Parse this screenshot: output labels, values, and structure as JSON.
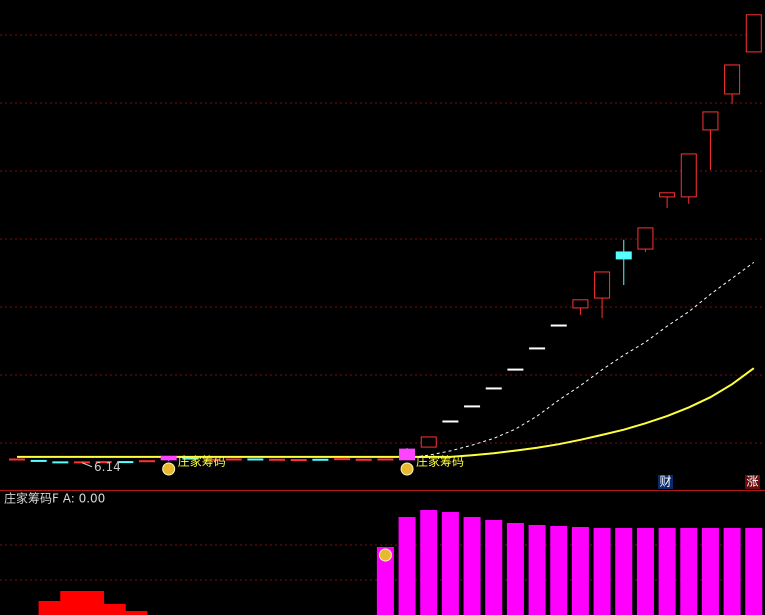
{
  "chart_data": {
    "type": "candlestick",
    "ylim": [
      5.2,
      22.1
    ],
    "colors": {
      "up": "#ff3232",
      "down": "#54ffff",
      "signal": "#ff44ff",
      "flat": "#ffffff"
    },
    "open": [
      6.24,
      6.22,
      6.17,
      6.15,
      6.17,
      6.18,
      6.2,
      6.24,
      6.3,
      6.25,
      6.26,
      6.27,
      6.25,
      6.24,
      6.26,
      6.27,
      6.25,
      6.26,
      6.24,
      6.68,
      7.58,
      8.1,
      8.72,
      9.37,
      10.1,
      10.89,
      11.48,
      11.82,
      13.41,
      13.51,
      15.31,
      15.31,
      17.62,
      18.86,
      20.31
    ],
    "close": [
      6.27,
      6.19,
      6.16,
      6.17,
      6.18,
      6.17,
      6.21,
      6.36,
      6.28,
      6.26,
      6.27,
      6.26,
      6.26,
      6.25,
      6.25,
      6.28,
      6.26,
      6.27,
      6.61,
      7.03,
      7.58,
      8.1,
      8.72,
      9.37,
      10.1,
      10.89,
      11.76,
      12.72,
      13.17,
      14.24,
      15.45,
      16.79,
      18.24,
      19.86,
      21.59
    ],
    "high": [
      6.28,
      6.23,
      6.18,
      6.18,
      6.19,
      6.19,
      6.22,
      6.37,
      6.31,
      6.27,
      6.28,
      6.28,
      6.27,
      6.26,
      6.27,
      6.29,
      6.27,
      6.28,
      6.65,
      7.03,
      7.58,
      8.1,
      8.72,
      9.37,
      10.1,
      10.89,
      11.76,
      12.72,
      13.83,
      14.24,
      15.45,
      16.79,
      18.24,
      19.86,
      21.59
    ],
    "low": [
      6.22,
      6.18,
      6.15,
      6.14,
      6.16,
      6.16,
      6.19,
      6.19,
      6.27,
      6.24,
      6.25,
      6.25,
      6.24,
      6.23,
      6.24,
      6.26,
      6.24,
      6.25,
      6.24,
      6.68,
      7.58,
      8.1,
      8.72,
      9.37,
      10.1,
      10.89,
      11.24,
      11.13,
      12.27,
      13.41,
      14.93,
      15.07,
      16.24,
      18.52,
      20.31
    ],
    "signals": [
      {
        "index": 7,
        "label": "庄家筹码"
      },
      {
        "index": 18,
        "label": "庄家筹码"
      }
    ],
    "low_label": 6.14,
    "low_index": 3,
    "lines": [
      {
        "color": "#ffff40",
        "dashed": false,
        "values": [
          6.34,
          6.34,
          6.34,
          6.34,
          6.34,
          6.34,
          6.34,
          6.34,
          6.34,
          6.34,
          6.34,
          6.34,
          6.34,
          6.34,
          6.34,
          6.34,
          6.34,
          6.34,
          6.34,
          6.34,
          6.34,
          6.4,
          6.47,
          6.56,
          6.66,
          6.78,
          6.93,
          7.1,
          7.28,
          7.5,
          7.75,
          8.05,
          8.4,
          8.85,
          9.4
        ]
      },
      {
        "color": "#ffffff",
        "dashed": true,
        "values": [
          null,
          null,
          null,
          null,
          null,
          null,
          null,
          null,
          null,
          null,
          null,
          null,
          null,
          null,
          null,
          null,
          null,
          null,
          6.3,
          6.4,
          6.55,
          6.75,
          6.98,
          7.3,
          7.75,
          8.3,
          8.8,
          9.35,
          9.85,
          10.3,
          10.85,
          11.35,
          11.95,
          12.5,
          13.05
        ]
      }
    ],
    "tags": [
      "财",
      "涨"
    ],
    "indicator": {
      "title": "庄家筹码F  A: 0.00",
      "ylim": [
        0,
        120
      ],
      "series": [
        {
          "color": "#ff0000",
          "values": [
            null,
            14,
            24,
            24,
            11,
            4,
            null,
            null,
            null,
            null,
            null,
            null,
            null,
            null,
            null,
            null,
            null,
            null,
            null,
            null,
            null,
            null,
            null,
            null,
            null,
            null,
            null,
            null,
            null,
            null,
            null,
            null,
            null,
            null,
            null
          ]
        },
        {
          "color": "#ff00ff",
          "values": [
            null,
            null,
            null,
            null,
            null,
            null,
            null,
            null,
            null,
            null,
            null,
            null,
            null,
            null,
            null,
            null,
            null,
            68,
            98,
            105,
            103,
            98,
            95,
            92,
            90,
            89,
            88,
            87,
            87,
            87,
            87,
            87,
            87,
            87,
            87
          ]
        }
      ]
    }
  }
}
